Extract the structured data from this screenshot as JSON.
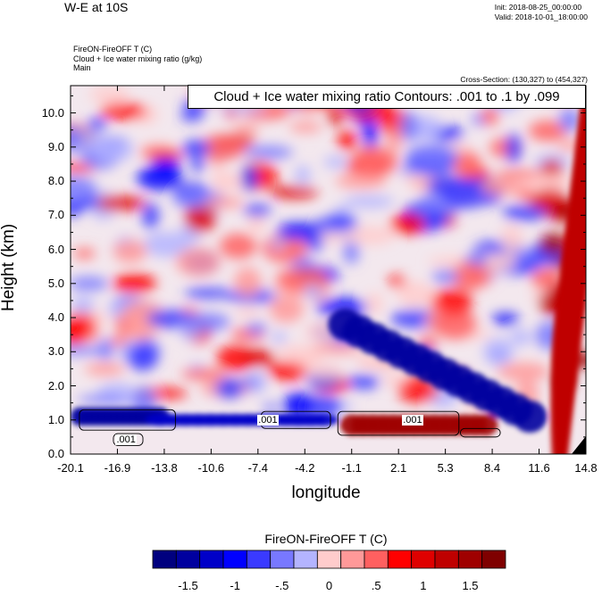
{
  "header": {
    "title": "W-E at 10S",
    "init": "Init: 2018-08-25_00:00:00",
    "valid": "Valid: 2018-10-01_18:00:00",
    "field1": "FireON-FireOFF T   (C)",
    "field2": "Cloud + Ice water mixing ratio   (g/kg)",
    "field3": "Main",
    "cross_section": "Cross-Section: (130,327) to (454,327)"
  },
  "contour_info": "Cloud + Ice water mixing ratio Contours: .001 to .1 by .099",
  "colorbar": {
    "title": "FireON-FireOFF T  (C)",
    "colors": [
      "#00007f",
      "#00009f",
      "#0000c8",
      "#0000ff",
      "#3a3aff",
      "#7878ff",
      "#b4b4ff",
      "#ffcccc",
      "#ff9999",
      "#ff6060",
      "#ff0000",
      "#df0000",
      "#bf0000",
      "#9f0000",
      "#7f0000"
    ],
    "labels": [
      "-1.5",
      "-1",
      "-.5",
      "0",
      ".5",
      "1",
      "1.5"
    ]
  },
  "chart_data": {
    "type": "heatmap",
    "xlabel": "longitude",
    "ylabel": "Height (km)",
    "xticks": [
      "-20.1",
      "-16.9",
      "-13.8",
      "-10.6",
      "-7.4",
      "-4.2",
      "-1.1",
      "2.1",
      "5.3",
      "8.4",
      "11.6",
      "14.8"
    ],
    "yticks": [
      "0.0",
      "1.0",
      "2.0",
      "3.0",
      "4.0",
      "5.0",
      "6.0",
      "7.0",
      "8.0",
      "9.0",
      "10.0"
    ],
    "xlim": [
      -20.1,
      14.8
    ],
    "ylim": [
      0.0,
      10.8
    ],
    "contour_labels": [
      ".001",
      ".001",
      ".001"
    ],
    "features": [
      {
        "desc": "strong cooling band near surface west",
        "x": [
          -19.5,
          -14.0
        ],
        "y": [
          0.8,
          1.4
        ],
        "value": -1.5
      },
      {
        "desc": "cooling band central",
        "x": [
          -14.0,
          -3.0
        ],
        "y": [
          0.8,
          1.2
        ],
        "value": -1.2
      },
      {
        "desc": "warming near surface east of prime meridian",
        "x": [
          -1.0,
          8.0
        ],
        "y": [
          0.5,
          1.2
        ],
        "value": 1.5
      },
      {
        "desc": "cooling layer sloping east",
        "x": [
          -1.5,
          11.0
        ],
        "y": [
          0.8,
          3.5
        ],
        "value": -1.3
      },
      {
        "desc": "warming upper east edge",
        "x": [
          13.0,
          14.8
        ],
        "y": [
          1.5,
          8.0
        ],
        "value": 1.2
      }
    ]
  }
}
